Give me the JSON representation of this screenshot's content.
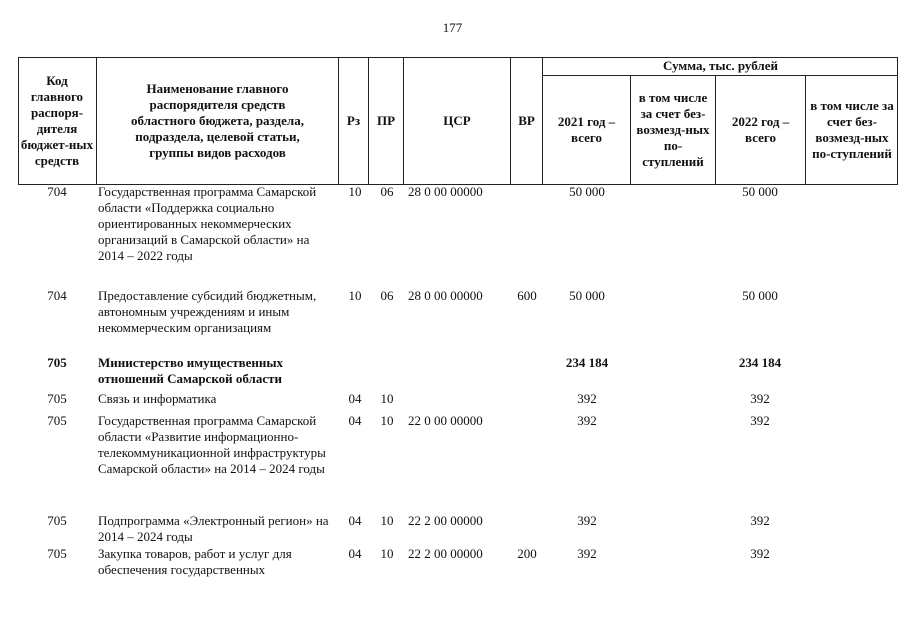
{
  "page_number": "177",
  "header": {
    "code": "Код главного распоря-дителя бюджет-ных средств",
    "name": "Наименование главного распорядителя средств областного бюджета, раздела, подраздела, целевой статьи, группы видов расходов",
    "rz": "Рз",
    "pr": "ПР",
    "csr": "ЦСР",
    "vr": "ВР",
    "sum": "Сумма, тыс. рублей",
    "y2021": "2021 год – всего",
    "incl2021": "в том числе за счет без-возмезд-ных по-ступлений",
    "y2022": "2022 год – всего",
    "incl2022": "в том числе за счет без-возмезд-ных по-ступлений"
  },
  "rows": [
    {
      "code": "704",
      "name": "Государственная программа Самарской области «Поддержка социально ориентированных некоммерческих организаций в Самарской области» на 2014 – 2022 годы",
      "rz": "10",
      "pr": "06",
      "csr": "28 0 00 00000",
      "vr": "",
      "s2021": "50 000",
      "s2022": "50 000"
    },
    {
      "code": "704",
      "name": "Предоставление субсидий бюджетным, автономным учреждениям и иным некоммерческим организациям",
      "rz": "10",
      "pr": "06",
      "csr": "28 0 00 00000",
      "vr": "600",
      "s2021": "50 000",
      "s2022": "50 000"
    },
    {
      "code": "705",
      "name": "Министерство имущественных отношений Самарской области",
      "rz": "",
      "pr": "",
      "csr": "",
      "vr": "",
      "s2021": "234 184",
      "s2022": "234 184"
    },
    {
      "code": "705",
      "name": "Связь и информатика",
      "rz": "04",
      "pr": "10",
      "csr": "",
      "vr": "",
      "s2021": "392",
      "s2022": "392"
    },
    {
      "code": "705",
      "name": "Государственная программа Самарской области «Развитие информационно-телекоммуникационной инфраструктуры Самарской области» на 2014 – 2024 годы",
      "rz": "04",
      "pr": "10",
      "csr": "22 0 00 00000",
      "vr": "",
      "s2021": "392",
      "s2022": "392"
    },
    {
      "code": "705",
      "name": "Подпрограмма «Электронный регион» на 2014 – 2024 годы",
      "rz": "04",
      "pr": "10",
      "csr": "22 2 00 00000",
      "vr": "",
      "s2021": "392",
      "s2022": "392"
    },
    {
      "code": "705",
      "name": "Закупка товаров, работ и услуг для обеспечения государственных",
      "rz": "04",
      "pr": "10",
      "csr": "22 2 00 00000",
      "vr": "200",
      "s2021": "392",
      "s2022": "392"
    }
  ]
}
